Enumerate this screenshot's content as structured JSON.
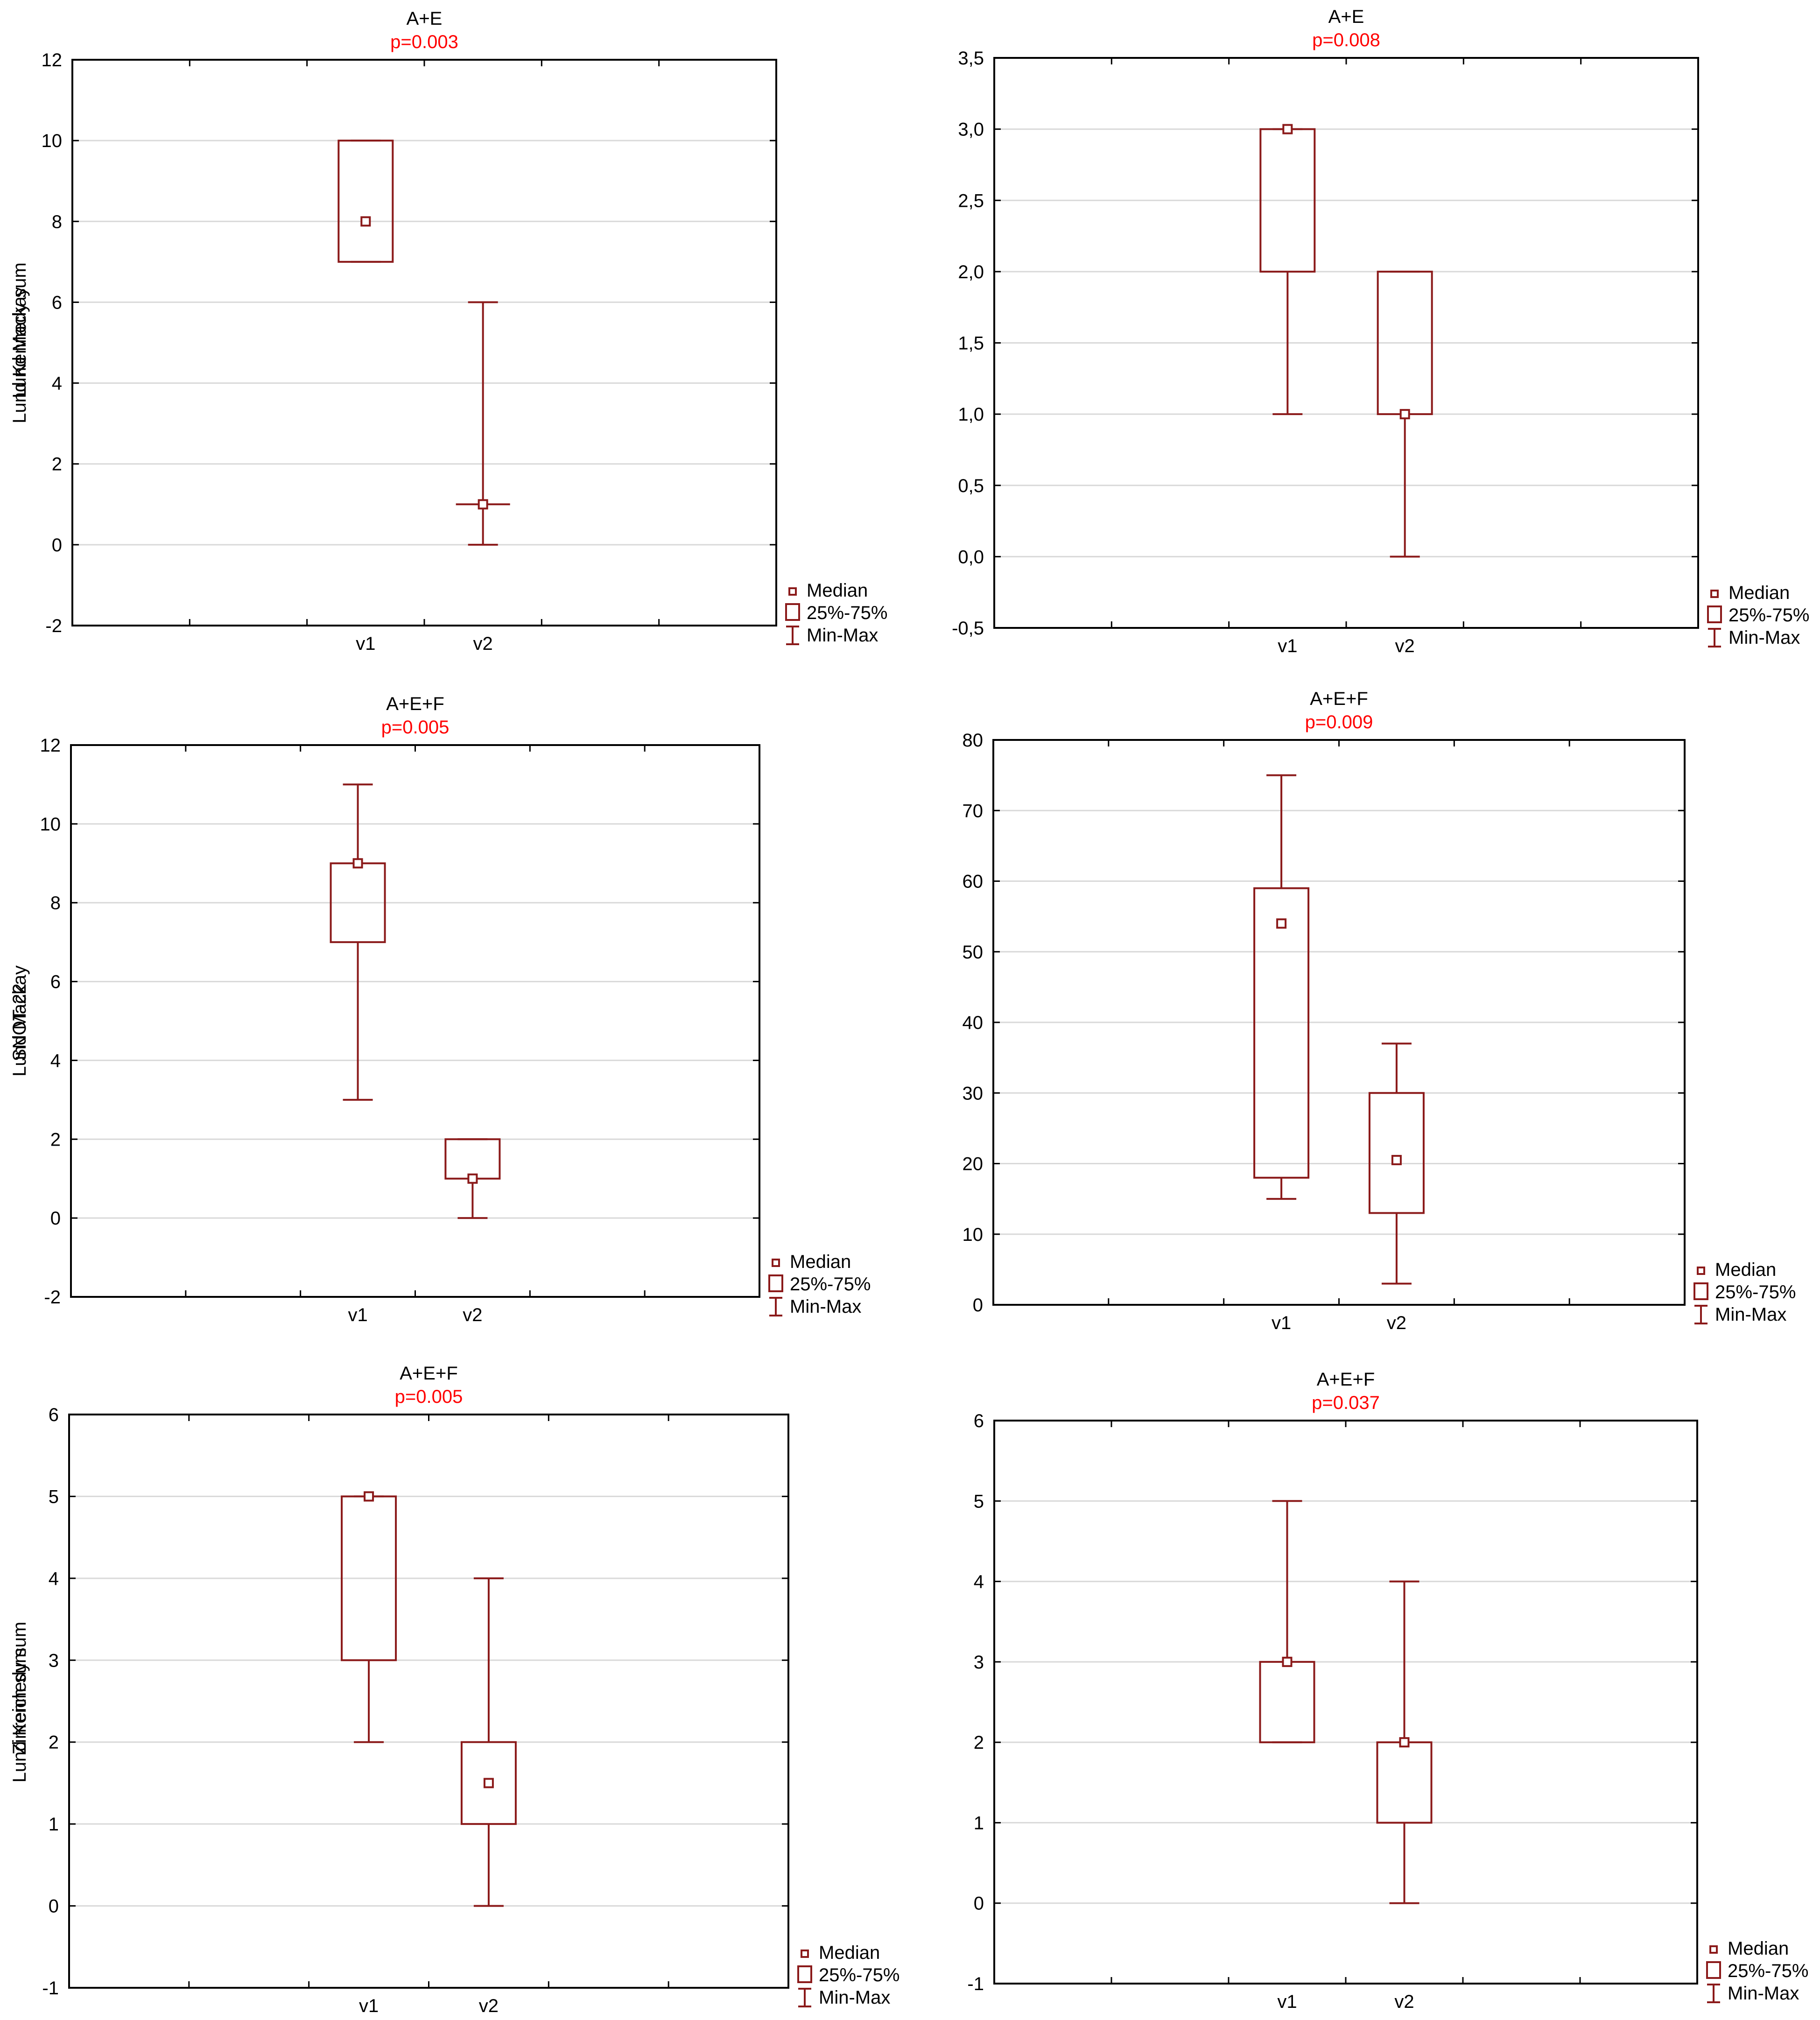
{
  "legend": {
    "median": "Median",
    "iqr": "25%-75%",
    "range": "Min-Max"
  },
  "colors": {
    "box": "#8b1a1a",
    "pvalue": "#ff0000",
    "text": "#000000",
    "grid": "#d9d9d9"
  },
  "chart_data": [
    {
      "type": "box",
      "title": "A+E",
      "subtitle": "p=0.003",
      "ylabel": "Lund Mackay",
      "categories": [
        "v1",
        "v2"
      ],
      "ylim": [
        -2,
        12
      ],
      "yticks": [
        "12",
        "10",
        "8",
        "6",
        "4",
        "2",
        "0",
        "-2"
      ],
      "tick_values": [
        12,
        10,
        8,
        6,
        4,
        2,
        0,
        -2
      ],
      "boxes": [
        {
          "min": 7,
          "q1": 7,
          "median": 8,
          "q3": 10,
          "max": 10
        },
        {
          "min": 0,
          "q1": 1,
          "median": 1,
          "q3": 1,
          "max": 6
        }
      ],
      "grid": true,
      "legend_position": "bottom-right"
    },
    {
      "type": "box",
      "title": "A+E",
      "subtitle": "p=0.008",
      "ylabel": "Lund Kennedy sum",
      "categories": [
        "v1",
        "v2"
      ],
      "ylim": [
        -0.5,
        3.5
      ],
      "yticks": [
        "3,5",
        "3,0",
        "2,5",
        "2,0",
        "1,5",
        "1,0",
        "0,5",
        "0,0",
        "-0,5"
      ],
      "tick_values": [
        3.5,
        3.0,
        2.5,
        2.0,
        1.5,
        1.0,
        0.5,
        0.0,
        -0.5
      ],
      "boxes": [
        {
          "min": 1,
          "q1": 2,
          "median": 3,
          "q3": 3,
          "max": 3
        },
        {
          "min": 0,
          "q1": 1,
          "median": 1,
          "q3": 2,
          "max": 2
        }
      ],
      "grid": true,
      "legend_position": "bottom-right"
    },
    {
      "type": "box",
      "title": "A+E+F",
      "subtitle": "p=0.005",
      "ylabel": "Lund Mackay",
      "categories": [
        "v1",
        "v2"
      ],
      "ylim": [
        -2,
        12
      ],
      "yticks": [
        "12",
        "10",
        "8",
        "6",
        "4",
        "2",
        "0",
        "-2"
      ],
      "tick_values": [
        12,
        10,
        8,
        6,
        4,
        2,
        0,
        -2
      ],
      "boxes": [
        {
          "min": 3,
          "q1": 7,
          "median": 9,
          "q3": 9,
          "max": 11
        },
        {
          "min": 0,
          "q1": 1,
          "median": 1,
          "q3": 2,
          "max": 2
        }
      ],
      "grid": true,
      "legend_position": "bottom-right"
    },
    {
      "type": "box",
      "title": "A+E+F",
      "subtitle": "p=0.009",
      "ylabel": "SNOT-22",
      "categories": [
        "v1",
        "v2"
      ],
      "ylim": [
        0,
        80
      ],
      "yticks": [
        "80",
        "70",
        "60",
        "50",
        "40",
        "30",
        "20",
        "10",
        "0"
      ],
      "tick_values": [
        80,
        70,
        60,
        50,
        40,
        30,
        20,
        10,
        0
      ],
      "boxes": [
        {
          "min": 15,
          "q1": 18,
          "median": 54,
          "q3": 59,
          "max": 75
        },
        {
          "min": 3,
          "q1": 13,
          "median": 20.5,
          "q3": 30,
          "max": 37
        }
      ],
      "grid": true,
      "legend_position": "bottom-right"
    },
    {
      "type": "box",
      "title": "A+E+F",
      "subtitle": "p=0.005",
      "ylabel": "Zinreich sum",
      "categories": [
        "v1",
        "v2"
      ],
      "ylim": [
        -1,
        6
      ],
      "yticks": [
        "6",
        "5",
        "4",
        "3",
        "2",
        "1",
        "0",
        "-1"
      ],
      "tick_values": [
        6,
        5,
        4,
        3,
        2,
        1,
        0,
        -1
      ],
      "boxes": [
        {
          "min": 2,
          "q1": 3,
          "median": 5,
          "q3": 5,
          "max": 5
        },
        {
          "min": 0,
          "q1": 1,
          "median": 1.5,
          "q3": 2,
          "max": 4
        }
      ],
      "grid": true,
      "legend_position": "bottom-right"
    },
    {
      "type": "box",
      "title": "A+E+F",
      "subtitle": "p=0.037",
      "ylabel": "Lund Kennedy sum",
      "categories": [
        "v1",
        "v2"
      ],
      "ylim": [
        -1,
        6
      ],
      "yticks": [
        "6",
        "5",
        "4",
        "3",
        "2",
        "1",
        "0",
        "-1"
      ],
      "tick_values": [
        6,
        5,
        4,
        3,
        2,
        1,
        0,
        -1
      ],
      "boxes": [
        {
          "min": 2,
          "q1": 2,
          "median": 3,
          "q3": 3,
          "max": 5
        },
        {
          "min": 0,
          "q1": 1,
          "median": 2,
          "q3": 2,
          "max": 4
        }
      ],
      "grid": true,
      "legend_position": "bottom-right"
    }
  ]
}
